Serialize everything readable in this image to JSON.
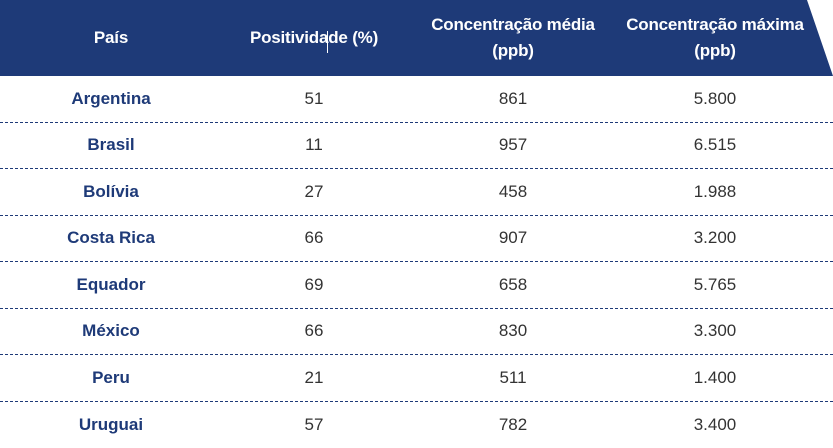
{
  "table": {
    "headers": [
      {
        "line1": "País",
        "line2": ""
      },
      {
        "line1": "Positividade (%)",
        "line2": ""
      },
      {
        "line1": "Concentração média",
        "line2": "(ppb)"
      },
      {
        "line1": "Concentração máxima",
        "line2": "(ppb)"
      }
    ],
    "rows": [
      {
        "country": "Argentina",
        "positivity": "51",
        "mean": "861",
        "max": "5.800"
      },
      {
        "country": "Brasil",
        "positivity": "11",
        "mean": "957",
        "max": "6.515"
      },
      {
        "country": "Bolívia",
        "positivity": "27",
        "mean": "458",
        "max": "1.988"
      },
      {
        "country": "Costa Rica",
        "positivity": "66",
        "mean": "907",
        "max": "3.200"
      },
      {
        "country": "Equador",
        "positivity": "69",
        "mean": "658",
        "max": "5.765"
      },
      {
        "country": "México",
        "positivity": "66",
        "mean": "830",
        "max": "3.300"
      },
      {
        "country": "Peru",
        "positivity": "21",
        "mean": "511",
        "max": "1.400"
      },
      {
        "country": "Uruguai",
        "positivity": "57",
        "mean": "782",
        "max": "3.400"
      }
    ]
  },
  "colors": {
    "header_bg": "#1e3a78",
    "country_text": "#1e3a78",
    "value_text": "#333333"
  }
}
